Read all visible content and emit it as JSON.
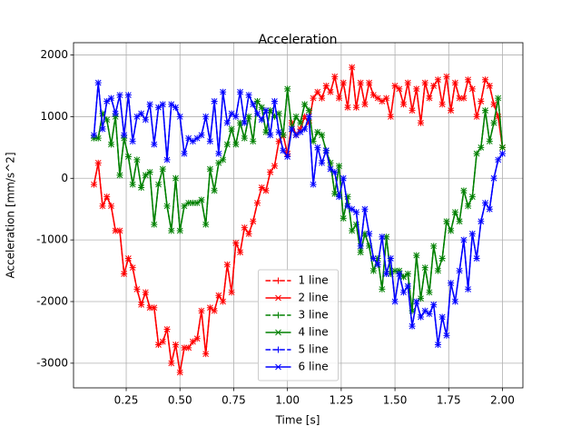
{
  "chart_data": {
    "type": "line",
    "title": "Acceleration",
    "xlabel": "Time [s]",
    "ylabel": "Acceleration [mm/s^2]",
    "x": [
      0.1,
      0.12,
      0.14,
      0.16,
      0.18,
      0.2,
      0.22,
      0.24,
      0.26,
      0.28,
      0.3,
      0.32,
      0.34,
      0.36,
      0.38,
      0.4,
      0.42,
      0.44,
      0.46,
      0.48,
      0.5,
      0.52,
      0.54,
      0.56,
      0.58,
      0.6,
      0.62,
      0.64,
      0.66,
      0.68,
      0.7,
      0.72,
      0.74,
      0.76,
      0.78,
      0.8,
      0.82,
      0.84,
      0.86,
      0.88,
      0.9,
      0.92,
      0.94,
      0.96,
      0.98,
      1.0,
      1.02,
      1.04,
      1.06,
      1.08,
      1.1,
      1.12,
      1.14,
      1.16,
      1.18,
      1.2,
      1.22,
      1.24,
      1.26,
      1.28,
      1.3,
      1.32,
      1.34,
      1.36,
      1.38,
      1.4,
      1.42,
      1.44,
      1.46,
      1.48,
      1.5,
      1.52,
      1.54,
      1.56,
      1.58,
      1.6,
      1.62,
      1.64,
      1.66,
      1.68,
      1.7,
      1.72,
      1.74,
      1.76,
      1.78,
      1.8,
      1.82,
      1.84,
      1.86,
      1.88,
      1.9,
      1.92,
      1.94,
      1.96,
      1.98,
      2.0
    ],
    "series": [
      {
        "name": "1 line",
        "color": "#ff0000",
        "linestyle": "dashed",
        "marker": "+",
        "values": [
          -100,
          250,
          -450,
          -300,
          -450,
          -850,
          -850,
          -1550,
          -1300,
          -1450,
          -1800,
          -2050,
          -1850,
          -2100,
          -2100,
          -2700,
          -2650,
          -2450,
          -3000,
          -2700,
          -3150,
          -2750,
          -2750,
          -2650,
          -2600,
          -2150,
          -2850,
          -2100,
          -2150,
          -1900,
          -2000,
          -1400,
          -1850,
          -1050,
          -1200,
          -800,
          -900,
          -700,
          -400,
          -150,
          -200,
          100,
          200,
          600,
          700,
          400,
          900,
          700,
          800,
          1000,
          900,
          1300,
          1400,
          1300,
          1500,
          1400,
          1650,
          1300,
          1550,
          1150,
          1800,
          1150,
          1550,
          1200,
          1550,
          1350,
          1300,
          1250,
          1300,
          1000,
          1500,
          1450,
          1200,
          1550,
          1100,
          1450,
          900,
          1550,
          1300,
          1500,
          1600,
          1200,
          1650,
          1100,
          1550,
          1300,
          1300,
          1600,
          1450,
          1000,
          1250,
          1600,
          1500,
          1200,
          1000,
          500
        ]
      },
      {
        "name": "2 line",
        "color": "#ff0000",
        "linestyle": "solid",
        "marker": "x",
        "values": [
          -100,
          250,
          -450,
          -300,
          -450,
          -850,
          -850,
          -1550,
          -1300,
          -1450,
          -1800,
          -2050,
          -1850,
          -2100,
          -2100,
          -2700,
          -2650,
          -2450,
          -3000,
          -2700,
          -3150,
          -2750,
          -2750,
          -2650,
          -2600,
          -2150,
          -2850,
          -2100,
          -2150,
          -1900,
          -2000,
          -1400,
          -1850,
          -1050,
          -1200,
          -800,
          -900,
          -700,
          -400,
          -150,
          -200,
          100,
          200,
          600,
          700,
          400,
          900,
          700,
          800,
          1000,
          900,
          1300,
          1400,
          1300,
          1500,
          1400,
          1650,
          1300,
          1550,
          1150,
          1800,
          1150,
          1550,
          1200,
          1550,
          1350,
          1300,
          1250,
          1300,
          1000,
          1500,
          1450,
          1200,
          1550,
          1100,
          1450,
          900,
          1550,
          1300,
          1500,
          1600,
          1200,
          1650,
          1100,
          1550,
          1300,
          1300,
          1600,
          1450,
          1000,
          1250,
          1600,
          1500,
          1200,
          1000,
          500
        ]
      },
      {
        "name": "3 line",
        "color": "#008000",
        "linestyle": "dashed",
        "marker": "+",
        "values": [
          650,
          650,
          1050,
          950,
          550,
          1000,
          50,
          650,
          350,
          -100,
          300,
          -150,
          50,
          100,
          -750,
          -100,
          150,
          -450,
          -850,
          0,
          -850,
          -450,
          -400,
          -400,
          -400,
          -350,
          -750,
          150,
          -200,
          250,
          300,
          550,
          800,
          550,
          900,
          650,
          1000,
          600,
          1250,
          1150,
          750,
          1100,
          1000,
          1050,
          700,
          1450,
          800,
          1000,
          900,
          1200,
          1100,
          600,
          750,
          700,
          450,
          250,
          -250,
          200,
          -650,
          -300,
          -850,
          -750,
          -1200,
          -900,
          -1100,
          -1500,
          -1300,
          -1800,
          -950,
          -1550,
          -1500,
          -1500,
          -1600,
          -1550,
          -2150,
          -1250,
          -1950,
          -1450,
          -1850,
          -1100,
          -1500,
          -1300,
          -700,
          -850,
          -550,
          -700,
          -200,
          -450,
          -300,
          400,
          500,
          1100,
          600,
          900,
          1300,
          500
        ]
      },
      {
        "name": "4 line",
        "color": "#008000",
        "linestyle": "solid",
        "marker": "x",
        "values": [
          650,
          650,
          1050,
          950,
          550,
          1000,
          50,
          650,
          350,
          -100,
          300,
          -150,
          50,
          100,
          -750,
          -100,
          150,
          -450,
          -850,
          0,
          -850,
          -450,
          -400,
          -400,
          -400,
          -350,
          -750,
          150,
          -200,
          250,
          300,
          550,
          800,
          550,
          900,
          650,
          1000,
          600,
          1250,
          1150,
          750,
          1100,
          1000,
          1050,
          700,
          1450,
          800,
          1000,
          900,
          1200,
          1100,
          600,
          750,
          700,
          450,
          250,
          -250,
          200,
          -650,
          -300,
          -850,
          -750,
          -1200,
          -900,
          -1100,
          -1500,
          -1300,
          -1800,
          -950,
          -1550,
          -1500,
          -1500,
          -1600,
          -1550,
          -2150,
          -1250,
          -1950,
          -1450,
          -1850,
          -1100,
          -1500,
          -1300,
          -700,
          -850,
          -550,
          -700,
          -200,
          -450,
          -300,
          400,
          500,
          1100,
          600,
          900,
          1300,
          500
        ]
      },
      {
        "name": "5 line",
        "color": "#0000ff",
        "linestyle": "dashed",
        "marker": "+",
        "values": [
          700,
          1550,
          800,
          1250,
          1300,
          1050,
          1350,
          700,
          1350,
          600,
          1000,
          1050,
          950,
          1200,
          550,
          1150,
          1200,
          300,
          1200,
          1150,
          1000,
          400,
          650,
          600,
          650,
          700,
          1000,
          600,
          1250,
          400,
          1400,
          900,
          1050,
          1000,
          1400,
          900,
          1350,
          1200,
          1050,
          950,
          1100,
          700,
          1250,
          750,
          450,
          350,
          800,
          700,
          750,
          800,
          1000,
          -100,
          500,
          250,
          450,
          150,
          100,
          -300,
          0,
          -450,
          -500,
          -550,
          -1100,
          -500,
          -900,
          -1300,
          -1400,
          -950,
          -1550,
          -1300,
          -2000,
          -1550,
          -1850,
          -1750,
          -2400,
          -2000,
          -2250,
          -2150,
          -2200,
          -2050,
          -2700,
          -2250,
          -2550,
          -1700,
          -2000,
          -1500,
          -1000,
          -1800,
          -900,
          -1300,
          -700,
          -400,
          -500,
          0,
          300,
          400
        ]
      },
      {
        "name": "6 line",
        "color": "#0000ff",
        "linestyle": "solid",
        "marker": "x",
        "values": [
          700,
          1550,
          800,
          1250,
          1300,
          1050,
          1350,
          700,
          1350,
          600,
          1000,
          1050,
          950,
          1200,
          550,
          1150,
          1200,
          300,
          1200,
          1150,
          1000,
          400,
          650,
          600,
          650,
          700,
          1000,
          600,
          1250,
          400,
          1400,
          900,
          1050,
          1000,
          1400,
          900,
          1350,
          1200,
          1050,
          950,
          1100,
          700,
          1250,
          750,
          450,
          350,
          800,
          700,
          750,
          800,
          1000,
          -100,
          500,
          250,
          450,
          150,
          100,
          -300,
          0,
          -450,
          -500,
          -550,
          -1100,
          -500,
          -900,
          -1300,
          -1400,
          -950,
          -1550,
          -1300,
          -2000,
          -1550,
          -1850,
          -1750,
          -2400,
          -2000,
          -2250,
          -2150,
          -2200,
          -2050,
          -2700,
          -2250,
          -2550,
          -1700,
          -2000,
          -1500,
          -1000,
          -1800,
          -900,
          -1300,
          -700,
          -400,
          -500,
          0,
          300,
          400
        ]
      }
    ],
    "xlim": [
      0.005,
      2.095
    ],
    "xticks": [
      0.25,
      {
        "value": 0.5,
        "label": "0.50"
      },
      0.75,
      {
        "value": 1,
        "label": "1.00"
      },
      1.25,
      {
        "value": 1.5,
        "label": "1.50"
      },
      1.75,
      {
        "value": 2,
        "label": "2.00"
      }
    ],
    "ylim": [
      -3400,
      2200
    ],
    "yticks": [
      -3000,
      -2000,
      -1000,
      0,
      1000,
      2000
    ],
    "grid": true,
    "legend": "lower center"
  }
}
